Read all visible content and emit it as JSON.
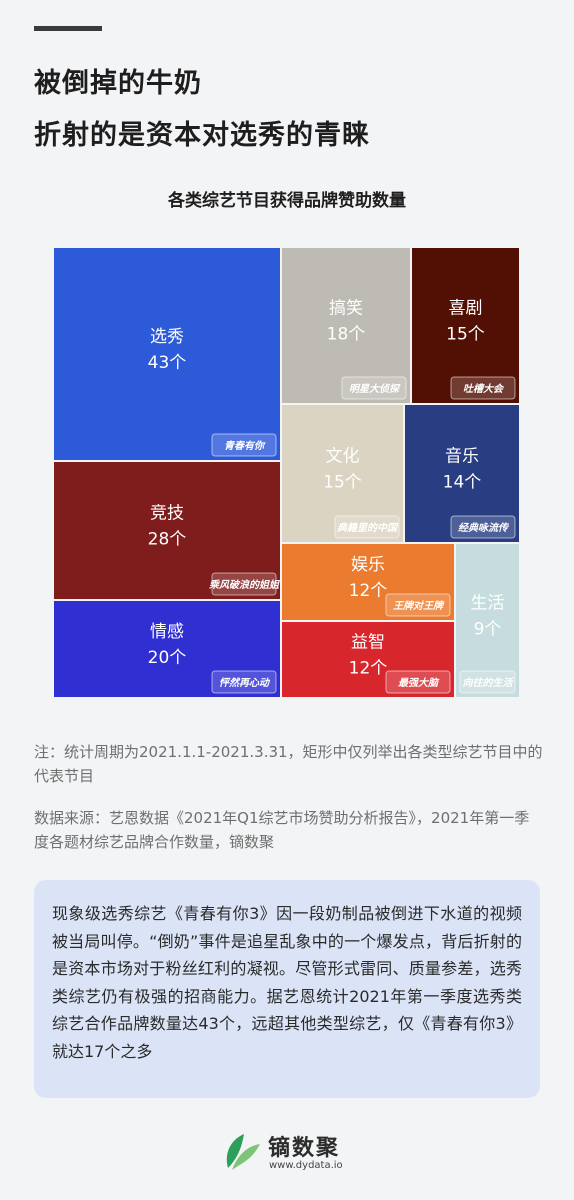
{
  "headline": {
    "line1": "被倒掉的牛奶",
    "line2": "折射的是资本对选秀的青睐"
  },
  "chart_data": {
    "type": "treemap",
    "title": "各类综艺节目获得品牌赞助数量",
    "unit": "个",
    "items": [
      {
        "name": "选秀",
        "value": 43,
        "show": "青春有你",
        "color": "#2d5ad9"
      },
      {
        "name": "竞技",
        "value": 28,
        "show": "乘风破浪的姐姐",
        "color": "#7f1c1c"
      },
      {
        "name": "情感",
        "value": 20,
        "show": "怦然再心动",
        "color": "#2f2fd2"
      },
      {
        "name": "搞笑",
        "value": 18,
        "show": "明星大侦探",
        "color": "#bdbbb3"
      },
      {
        "name": "喜剧",
        "value": 15,
        "show": "吐槽大会",
        "color": "#521004"
      },
      {
        "name": "文化",
        "value": 15,
        "show": "典籍里的中国",
        "color": "#dcd4c3"
      },
      {
        "name": "音乐",
        "value": 14,
        "show": "经典咏流传",
        "color": "#283d82"
      },
      {
        "name": "娱乐",
        "value": 12,
        "show": "王牌对王牌",
        "color": "#eb7b2e"
      },
      {
        "name": "益智",
        "value": 12,
        "show": "最强大脑",
        "color": "#d7272c"
      },
      {
        "name": "生活",
        "value": 9,
        "show": "向往的生活",
        "color": "#c7dcde"
      }
    ]
  },
  "notes": {
    "period": "注：统计周期为2021.1.1-2021.3.31，矩形中仅列举出各类型综艺节目中的代表节目",
    "source": "数据来源：艺恩数据《2021年Q1综艺市场赞助分析报告》，2021年第一季度各题材综艺品牌合作数量，镝数聚"
  },
  "summary": "现象级选秀综艺《青春有你3》因一段奶制品被倒进下水道的视频被当局叫停。“倒奶”事件是追星乱象中的一个爆发点，背后折射的是资本市场对于粉丝红利的凝视。尽管形式雷同、质量参差，选秀类综艺仍有极强的招商能力。据艺恩统计2021年第一季度选秀类综艺合作品牌数量达43个，远超其他类型综艺，仅《青春有你3》就达17个之多",
  "brand": {
    "name": "镝数聚",
    "url": "www.dydata.io",
    "icon": "leaf-logo-icon",
    "colors": [
      "#2e9e5b",
      "#7cc576"
    ]
  }
}
